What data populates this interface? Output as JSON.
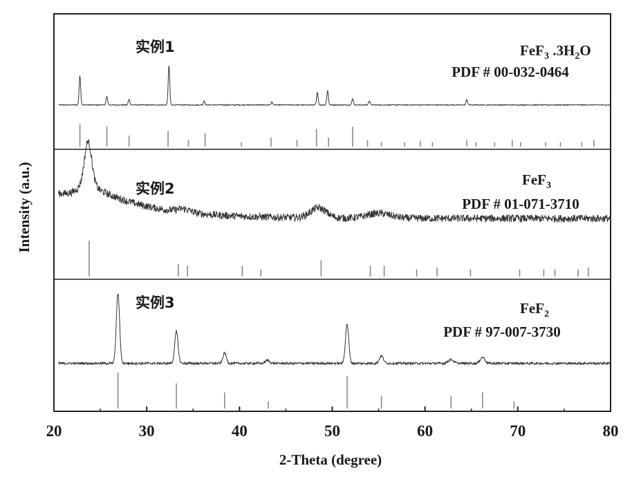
{
  "chart_data": {
    "type": "line",
    "xlabel": "2-Theta (degree)",
    "ylabel": "Intensity (a.u.)",
    "xlim": [
      20,
      80
    ],
    "xticks": [
      "20",
      "30",
      "40",
      "50",
      "60",
      "70",
      "80"
    ],
    "grid": false,
    "legend": "none",
    "panels": [
      {
        "name": "实例1",
        "phase_main": "FeF",
        "phase_sub": "3",
        "phase_rest": " .3H",
        "phase_sub2": "2",
        "phase_end": "O",
        "pdf": "PDF # 00-032-0464",
        "baseline": 0.02,
        "noise": 0.02,
        "bumps": [],
        "peaks": [
          {
            "x": 22.8,
            "h": 0.7,
            "w": 0.12
          },
          {
            "x": 25.7,
            "h": 0.2,
            "w": 0.12
          },
          {
            "x": 28.1,
            "h": 0.14,
            "w": 0.12
          },
          {
            "x": 32.4,
            "h": 0.95,
            "w": 0.12
          },
          {
            "x": 36.2,
            "h": 0.1,
            "w": 0.12
          },
          {
            "x": 43.5,
            "h": 0.07,
            "w": 0.12
          },
          {
            "x": 48.4,
            "h": 0.3,
            "w": 0.12
          },
          {
            "x": 49.5,
            "h": 0.35,
            "w": 0.12
          },
          {
            "x": 52.2,
            "h": 0.15,
            "w": 0.12
          },
          {
            "x": 54.0,
            "h": 0.1,
            "w": 0.12
          },
          {
            "x": 64.5,
            "h": 0.13,
            "w": 0.12
          }
        ],
        "sticks": [
          {
            "x": 22.8,
            "h": 1.0
          },
          {
            "x": 25.7,
            "h": 0.9
          },
          {
            "x": 28.1,
            "h": 0.5
          },
          {
            "x": 32.3,
            "h": 0.7
          },
          {
            "x": 34.5,
            "h": 0.3
          },
          {
            "x": 36.3,
            "h": 0.6
          },
          {
            "x": 40.2,
            "h": 0.2
          },
          {
            "x": 43.4,
            "h": 0.4
          },
          {
            "x": 46.2,
            "h": 0.3
          },
          {
            "x": 48.3,
            "h": 0.8
          },
          {
            "x": 49.6,
            "h": 0.4
          },
          {
            "x": 52.2,
            "h": 0.9
          },
          {
            "x": 53.8,
            "h": 0.3
          },
          {
            "x": 55.3,
            "h": 0.2
          },
          {
            "x": 57.8,
            "h": 0.2
          },
          {
            "x": 59.5,
            "h": 0.25
          },
          {
            "x": 60.8,
            "h": 0.2
          },
          {
            "x": 64.5,
            "h": 0.3
          },
          {
            "x": 65.5,
            "h": 0.2
          },
          {
            "x": 67.5,
            "h": 0.2
          },
          {
            "x": 69.4,
            "h": 0.3
          },
          {
            "x": 70.3,
            "h": 0.2
          },
          {
            "x": 73.0,
            "h": 0.2
          },
          {
            "x": 74.6,
            "h": 0.2
          },
          {
            "x": 76.9,
            "h": 0.2
          },
          {
            "x": 78.2,
            "h": 0.3
          }
        ]
      },
      {
        "name": "实例2",
        "phase_main": "FeF",
        "phase_sub": "3",
        "phase_rest": "",
        "phase_sub2": "",
        "phase_end": "",
        "pdf": "PDF # 01-071-3710",
        "baseline": 0.12,
        "noise": 0.09,
        "bumps": [
          {
            "x": 48.5,
            "h": 0.12,
            "w": 1.2
          },
          {
            "x": 55.0,
            "h": 0.06,
            "w": 1.8
          },
          {
            "x": 34.0,
            "h": 0.04,
            "w": 1.0
          }
        ],
        "decay": {
          "x0": 23.7,
          "amp": 0.42,
          "tau": 6.0,
          "floor": 0.08,
          "left": 0.38
        },
        "peaks": [
          {
            "x": 23.7,
            "h": 0.5,
            "w": 0.55
          }
        ],
        "sticks": [
          {
            "x": 23.8,
            "h": 1.0
          },
          {
            "x": 33.4,
            "h": 0.35
          },
          {
            "x": 34.4,
            "h": 0.3
          },
          {
            "x": 40.3,
            "h": 0.3
          },
          {
            "x": 42.3,
            "h": 0.2
          },
          {
            "x": 48.8,
            "h": 0.45
          },
          {
            "x": 54.1,
            "h": 0.3
          },
          {
            "x": 55.6,
            "h": 0.3
          },
          {
            "x": 59.1,
            "h": 0.2
          },
          {
            "x": 61.3,
            "h": 0.25
          },
          {
            "x": 64.9,
            "h": 0.2
          },
          {
            "x": 70.2,
            "h": 0.2
          },
          {
            "x": 72.8,
            "h": 0.2
          },
          {
            "x": 74.0,
            "h": 0.2
          },
          {
            "x": 76.5,
            "h": 0.2
          },
          {
            "x": 77.6,
            "h": 0.25
          }
        ]
      },
      {
        "name": "实例3",
        "phase_main": "FeF",
        "phase_sub": "2",
        "phase_rest": "",
        "phase_sub2": "",
        "phase_end": "",
        "pdf": "PDF # 97-007-3730",
        "baseline": 0.04,
        "noise": 0.03,
        "bumps": [],
        "peaks": [
          {
            "x": 26.9,
            "h": 0.92,
            "w": 0.25
          },
          {
            "x": 33.2,
            "h": 0.42,
            "w": 0.25
          },
          {
            "x": 38.4,
            "h": 0.14,
            "w": 0.25
          },
          {
            "x": 43.0,
            "h": 0.04,
            "w": 0.3
          },
          {
            "x": 51.6,
            "h": 0.52,
            "w": 0.25
          },
          {
            "x": 55.3,
            "h": 0.1,
            "w": 0.3
          },
          {
            "x": 62.8,
            "h": 0.05,
            "w": 0.4
          },
          {
            "x": 66.2,
            "h": 0.08,
            "w": 0.35
          }
        ],
        "sticks": [
          {
            "x": 26.9,
            "h": 1.0
          },
          {
            "x": 33.2,
            "h": 0.7
          },
          {
            "x": 38.4,
            "h": 0.45
          },
          {
            "x": 43.1,
            "h": 0.2
          },
          {
            "x": 51.6,
            "h": 0.9
          },
          {
            "x": 55.3,
            "h": 0.35
          },
          {
            "x": 62.8,
            "h": 0.35
          },
          {
            "x": 66.2,
            "h": 0.45
          },
          {
            "x": 69.6,
            "h": 0.2
          }
        ]
      }
    ]
  }
}
